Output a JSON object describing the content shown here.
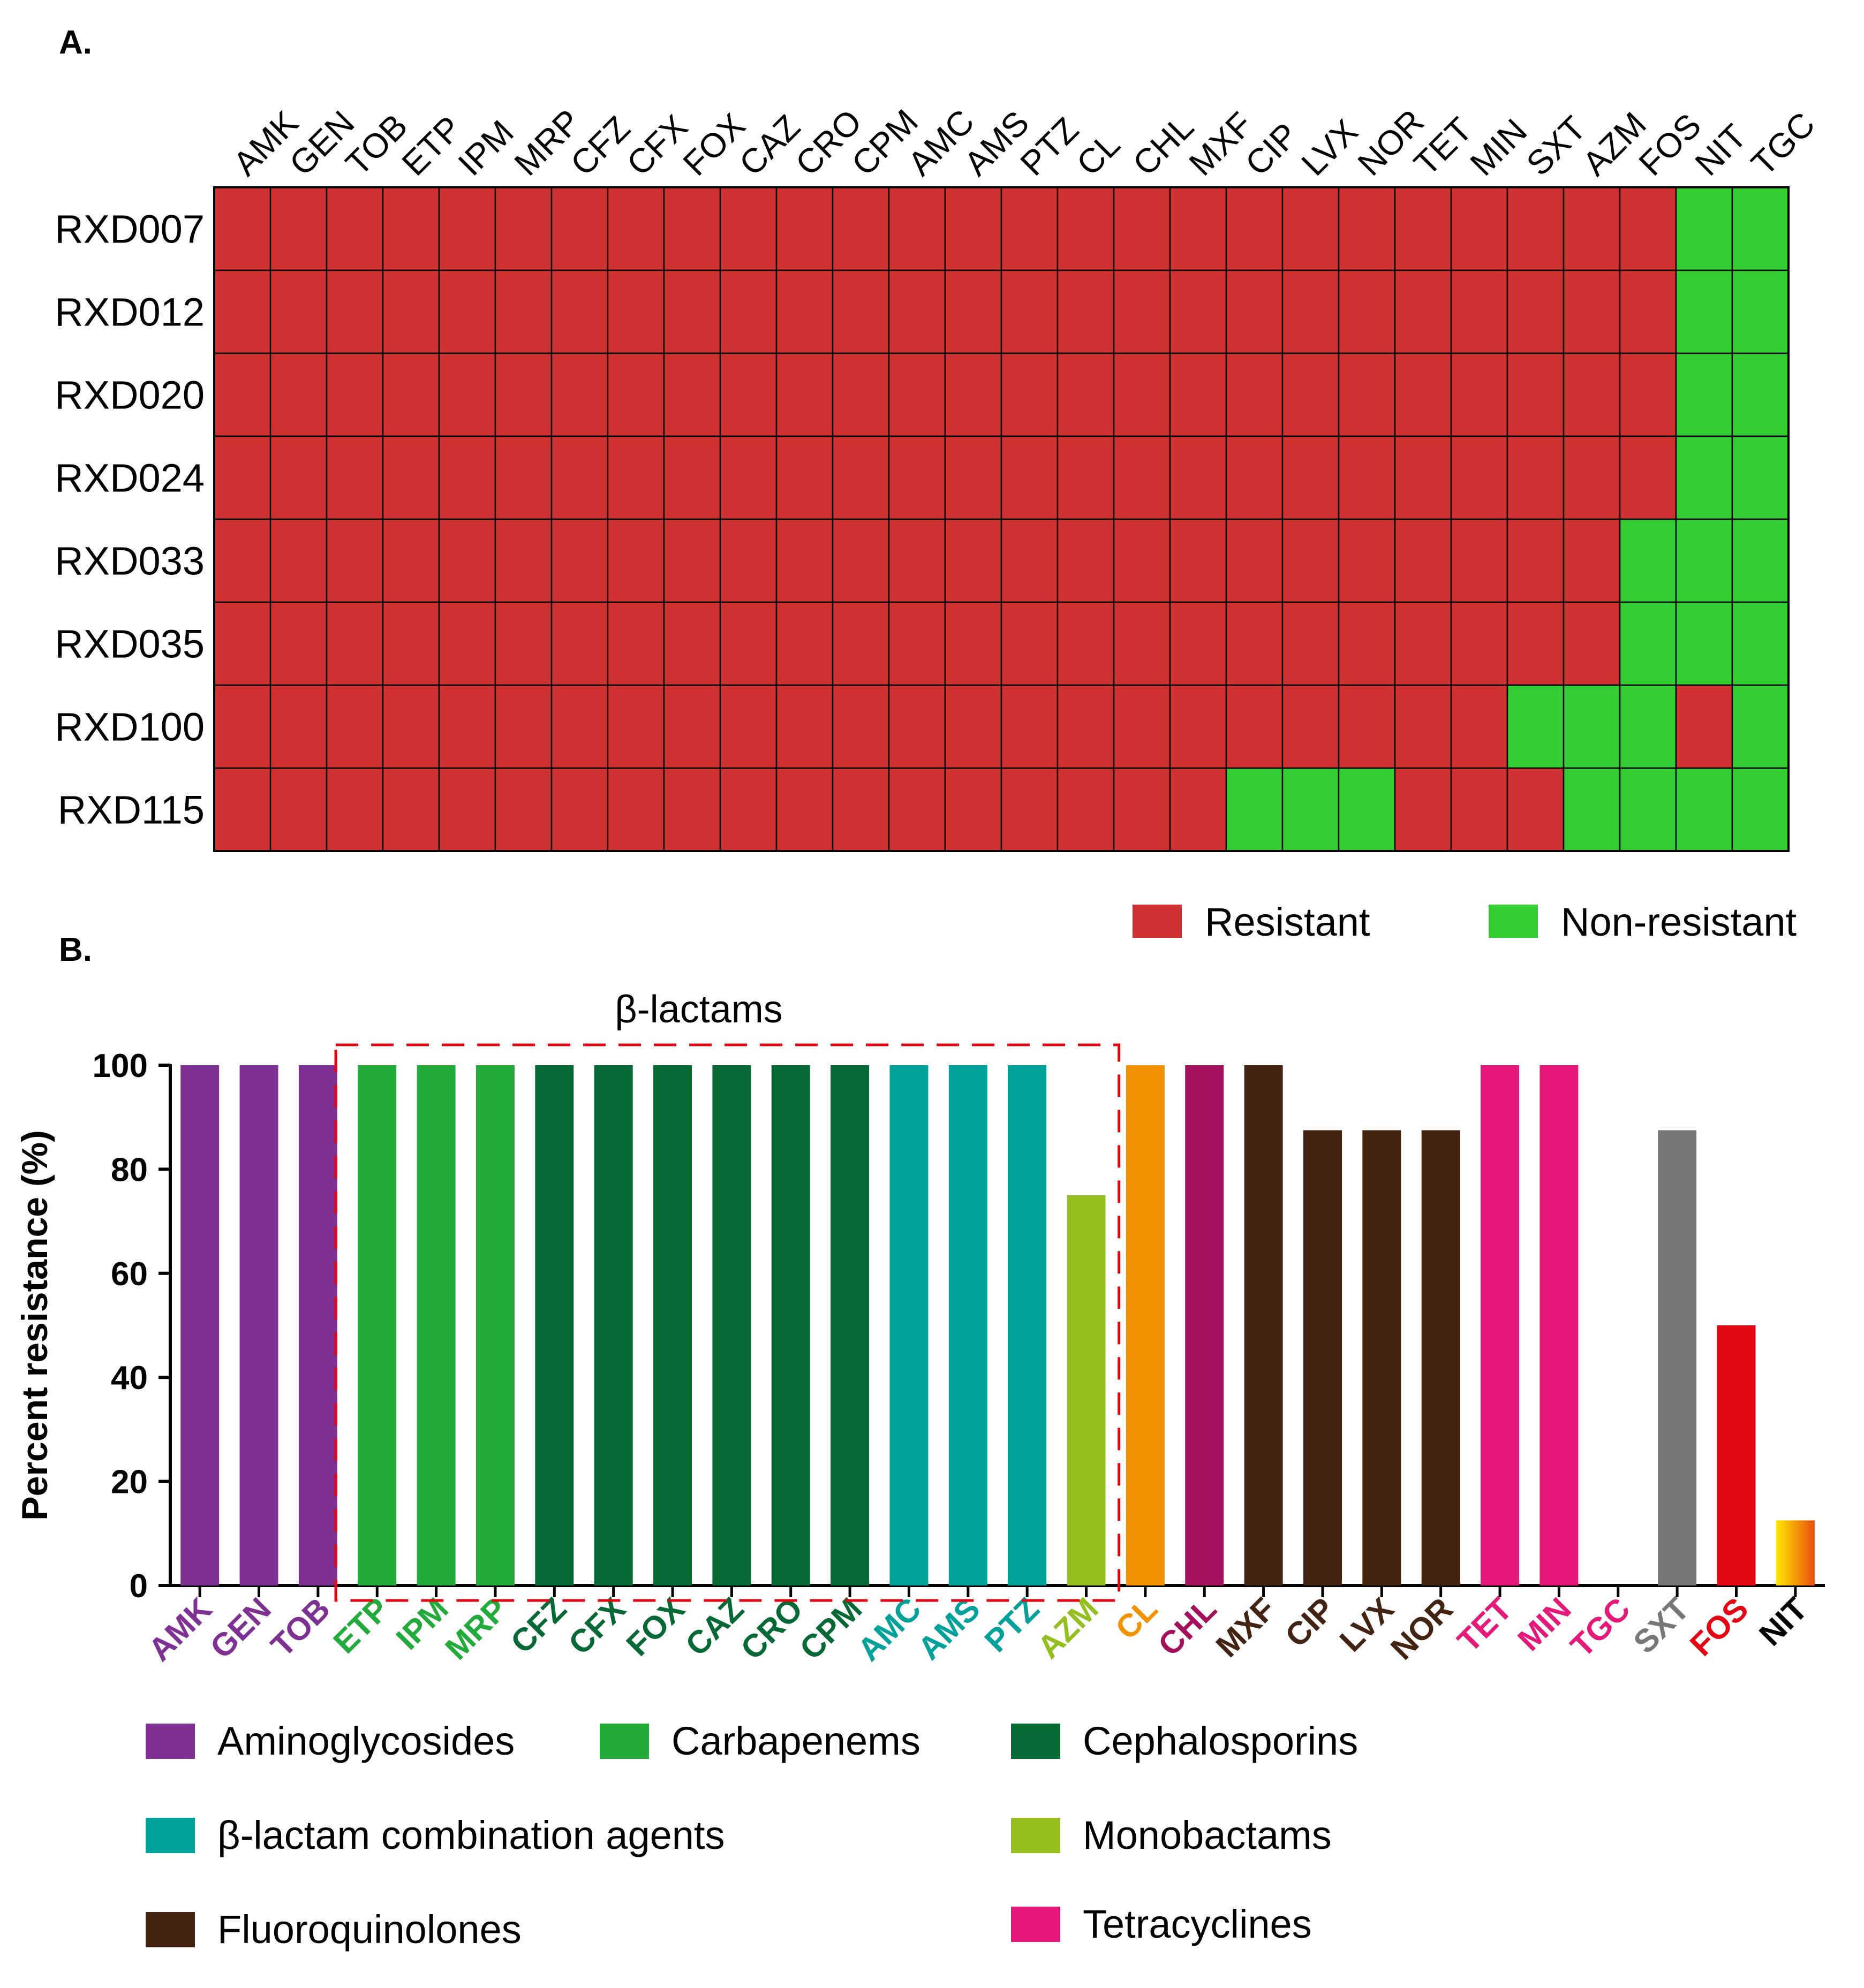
{
  "panel_a": {
    "label": "A."
  },
  "panel_b": {
    "label": "B."
  },
  "chart_data": [
    {
      "type": "heatmap",
      "title": "",
      "columns": [
        "AMK",
        "GEN",
        "TOB",
        "ETP",
        "IPM",
        "MRP",
        "CFZ",
        "CFX",
        "FOX",
        "CAZ",
        "CRO",
        "CPM",
        "AMC",
        "AMS",
        "PTZ",
        "CL",
        "CHL",
        "MXF",
        "CIP",
        "LVX",
        "NOR",
        "TET",
        "MIN",
        "SXT",
        "AZM",
        "FOS",
        "NIT",
        "TGC"
      ],
      "rows": [
        {
          "name": "RXD007",
          "values": [
            1,
            1,
            1,
            1,
            1,
            1,
            1,
            1,
            1,
            1,
            1,
            1,
            1,
            1,
            1,
            1,
            1,
            1,
            1,
            1,
            1,
            1,
            1,
            1,
            1,
            1,
            0,
            0
          ]
        },
        {
          "name": "RXD012",
          "values": [
            1,
            1,
            1,
            1,
            1,
            1,
            1,
            1,
            1,
            1,
            1,
            1,
            1,
            1,
            1,
            1,
            1,
            1,
            1,
            1,
            1,
            1,
            1,
            1,
            1,
            1,
            0,
            0
          ]
        },
        {
          "name": "RXD020",
          "values": [
            1,
            1,
            1,
            1,
            1,
            1,
            1,
            1,
            1,
            1,
            1,
            1,
            1,
            1,
            1,
            1,
            1,
            1,
            1,
            1,
            1,
            1,
            1,
            1,
            1,
            1,
            0,
            0
          ]
        },
        {
          "name": "RXD024",
          "values": [
            1,
            1,
            1,
            1,
            1,
            1,
            1,
            1,
            1,
            1,
            1,
            1,
            1,
            1,
            1,
            1,
            1,
            1,
            1,
            1,
            1,
            1,
            1,
            1,
            1,
            1,
            0,
            0
          ]
        },
        {
          "name": "RXD033",
          "values": [
            1,
            1,
            1,
            1,
            1,
            1,
            1,
            1,
            1,
            1,
            1,
            1,
            1,
            1,
            1,
            1,
            1,
            1,
            1,
            1,
            1,
            1,
            1,
            1,
            1,
            0,
            0,
            0
          ]
        },
        {
          "name": "RXD035",
          "values": [
            1,
            1,
            1,
            1,
            1,
            1,
            1,
            1,
            1,
            1,
            1,
            1,
            1,
            1,
            1,
            1,
            1,
            1,
            1,
            1,
            1,
            1,
            1,
            1,
            1,
            0,
            0,
            0
          ]
        },
        {
          "name": "RXD100",
          "values": [
            1,
            1,
            1,
            1,
            1,
            1,
            1,
            1,
            1,
            1,
            1,
            1,
            1,
            1,
            1,
            1,
            1,
            1,
            1,
            1,
            1,
            1,
            1,
            0,
            0,
            0,
            1,
            0
          ]
        },
        {
          "name": "RXD115",
          "values": [
            1,
            1,
            1,
            1,
            1,
            1,
            1,
            1,
            1,
            1,
            1,
            1,
            1,
            1,
            1,
            1,
            1,
            1,
            0,
            0,
            0,
            1,
            1,
            1,
            0,
            0,
            0,
            0
          ]
        }
      ],
      "legend": [
        {
          "label": "Resistant",
          "color": "#d03232"
        },
        {
          "label": "Non-resistant",
          "color": "#33cc33"
        }
      ],
      "grid_color": "#000000"
    },
    {
      "type": "bar",
      "title": "",
      "xlabel": "",
      "ylabel": "Percent resistance (%)",
      "ylim": [
        0,
        100
      ],
      "yticks": [
        0,
        20,
        40,
        60,
        80,
        100
      ],
      "categories": [
        "AMK",
        "GEN",
        "TOB",
        "ETP",
        "IPM",
        "MRP",
        "CFZ",
        "CFX",
        "FOX",
        "CAZ",
        "CRO",
        "CPM",
        "AMC",
        "AMS",
        "PTZ",
        "AZM",
        "CL",
        "CHL",
        "MXF",
        "CIP",
        "LVX",
        "NOR",
        "TET",
        "MIN",
        "TGC",
        "SXT",
        "FOS",
        "NIT"
      ],
      "values": [
        100,
        100,
        100,
        100,
        100,
        100,
        100,
        100,
        100,
        100,
        100,
        100,
        100,
        100,
        100,
        75,
        100,
        100,
        100,
        87.5,
        87.5,
        87.5,
        100,
        100,
        0,
        87.5,
        50,
        12.5
      ],
      "bar_colors": [
        "#7e3193",
        "#7e3193",
        "#7e3193",
        "#22aa3a",
        "#22aa3a",
        "#22aa3a",
        "#056934",
        "#056934",
        "#056934",
        "#056934",
        "#056934",
        "#056934",
        "#00a19b",
        "#00a19b",
        "#00a19b",
        "#93c01f",
        "#f39200",
        "#a3105c",
        "#432413",
        "#432413",
        "#432413",
        "#432413",
        "#e5197a",
        "#e5197a",
        "#e5197a",
        "#777777",
        "#e30613",
        "gradient"
      ],
      "label_colors": [
        "#7e3193",
        "#7e3193",
        "#7e3193",
        "#22aa3a",
        "#22aa3a",
        "#22aa3a",
        "#056934",
        "#056934",
        "#056934",
        "#056934",
        "#056934",
        "#056934",
        "#00a19b",
        "#00a19b",
        "#00a19b",
        "#93c01f",
        "#f39200",
        "#a3105c",
        "#432413",
        "#432413",
        "#432413",
        "#432413",
        "#e5197a",
        "#e5197a",
        "#e5197a",
        "#777777",
        "#e30613",
        "#000000"
      ],
      "gradient": [
        "#ffe600",
        "#e8500e"
      ],
      "annotation": {
        "label": "β-lactams",
        "from": "ETP",
        "to": "AZM",
        "color": "#e30613"
      },
      "legend": [
        {
          "label": "Aminoglycosides",
          "color": "#7e3193"
        },
        {
          "label": "Carbapenems",
          "color": "#22aa3a"
        },
        {
          "label": "Cephalosporins",
          "color": "#056934"
        },
        {
          "label": "β-lactam combination agents",
          "color": "#00a19b"
        },
        {
          "label": "Monobactams",
          "color": "#93c01f"
        },
        {
          "label": "Fluoroquinolones",
          "color": "#432413"
        },
        {
          "label": "Tetracyclines",
          "color": "#e5197a"
        }
      ]
    }
  ]
}
